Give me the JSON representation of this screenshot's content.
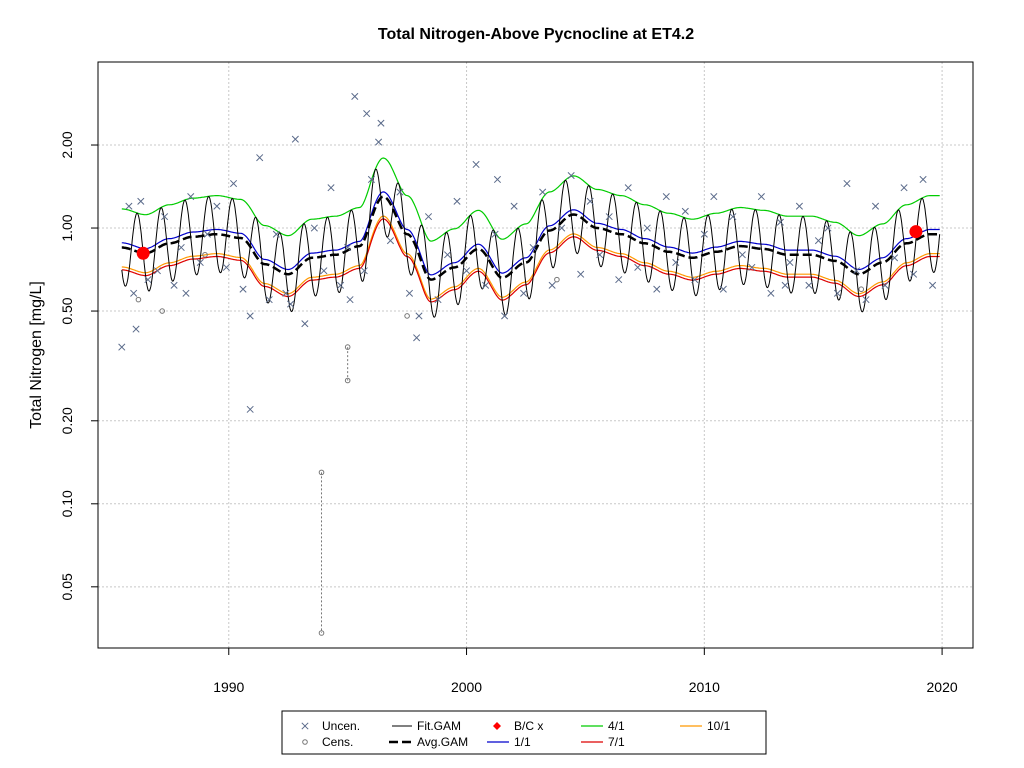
{
  "chart_data": {
    "type": "line",
    "title": "Total Nitrogen-Above Pycnocline at ET4.2",
    "xlabel": "",
    "ylabel": "Total Nitrogen [mg/L]",
    "y_scale": "log",
    "xlim": [
      1984.5,
      2021.3
    ],
    "ylim": [
      0.03,
      4.0
    ],
    "x_ticks": [
      1990,
      2000,
      2010,
      2020
    ],
    "x_tick_labels": [
      "1990",
      "2000",
      "2010",
      "2020"
    ],
    "y_ticks": [
      0.05,
      0.1,
      0.2,
      0.5,
      1.0,
      2.0
    ],
    "y_tick_labels": [
      "0.05",
      "0.10",
      "0.20",
      "0.50",
      "1.00",
      "2.00"
    ],
    "grid": true,
    "legend_position": "bottom",
    "legend": [
      {
        "key": "uncen",
        "label": "Uncen."
      },
      {
        "key": "cens",
        "label": "Cens."
      },
      {
        "key": "fit",
        "label": "Fit.GAM"
      },
      {
        "key": "avg",
        "label": "Avg.GAM"
      },
      {
        "key": "bc",
        "label": "B/C x"
      },
      {
        "key": "s11",
        "label": "1/1"
      },
      {
        "key": "s41",
        "label": "4/1"
      },
      {
        "key": "s71",
        "label": "7/1"
      },
      {
        "key": "s101",
        "label": "10/1"
      }
    ],
    "colors": {
      "uncen": "#5a6a8a",
      "cens": "#777777",
      "fit": "#000000",
      "avg": "#000000",
      "bc": "#ff0000",
      "s11": "#0000cc",
      "s41": "#00cc00",
      "s71": "#dd0000",
      "s101": "#ff9900"
    },
    "avg_gam": {
      "x": [
        1985.5,
        1986.5,
        1987.5,
        1988.5,
        1989.5,
        1990.5,
        1991.5,
        1992.5,
        1993.5,
        1994.5,
        1995.5,
        1996.5,
        1997.5,
        1998.5,
        1999.5,
        2000.5,
        2001.5,
        2002.5,
        2003.5,
        2004.5,
        2005.5,
        2006.5,
        2007.5,
        2008.5,
        2009.5,
        2010.5,
        2011.5,
        2012.5,
        2013.5,
        2014.5,
        2015.5,
        2016.5,
        2017.5,
        2018.5,
        2019.5
      ],
      "y": [
        0.85,
        0.81,
        0.88,
        0.93,
        0.95,
        0.92,
        0.74,
        0.68,
        0.78,
        0.8,
        0.86,
        1.3,
        0.95,
        0.65,
        0.72,
        0.84,
        0.66,
        0.75,
        0.98,
        1.12,
        1.0,
        0.95,
        0.88,
        0.82,
        0.78,
        0.82,
        0.86,
        0.84,
        0.8,
        0.8,
        0.76,
        0.68,
        0.75,
        0.88,
        0.95
      ]
    },
    "bc_points": {
      "x": [
        1986.4,
        2018.9
      ],
      "y": [
        0.81,
        0.97
      ]
    },
    "uncen_points": {
      "x": [
        1985.5,
        1985.8,
        1986.0,
        1986.3,
        1986.6,
        1987.0,
        1987.3,
        1987.7,
        1988.0,
        1988.4,
        1988.8,
        1989.1,
        1989.5,
        1989.9,
        1990.2,
        1990.6,
        1990.9,
        1991.3,
        1991.7,
        1992.0,
        1992.4,
        1992.8,
        1993.2,
        1993.6,
        1994.0,
        1994.3,
        1994.7,
        1995.0,
        1995.3,
        1995.7,
        1996.0,
        1996.4,
        1996.8,
        1997.2,
        1997.6,
        1998.0,
        1998.4,
        1998.8,
        1999.2,
        1999.6,
        2000.0,
        2000.4,
        2000.8,
        2001.2,
        2001.6,
        2002.0,
        2002.4,
        2002.8,
        2003.2,
        2003.6,
        2004.0,
        2004.4,
        2004.8,
        2005.2,
        2005.6,
        2006.0,
        2006.4,
        2006.8,
        2007.2,
        2007.6,
        2008.0,
        2008.4,
        2008.8,
        2009.2,
        2009.6,
        2010.0,
        2010.4,
        2010.8,
        2011.2,
        2011.6,
        2012.0,
        2012.4,
        2012.8,
        2013.2,
        2013.6,
        2014.0,
        2014.4,
        2014.8,
        2015.2,
        2015.6,
        2016.0,
        2016.4,
        2016.8,
        2017.2,
        2017.6,
        2018.0,
        2018.4,
        2018.8,
        2019.2,
        2019.6,
        1986.1,
        1990.9,
        1992.6,
        1995.1,
        1995.8,
        1996.3,
        2001.3,
        1988.2,
        1997.9,
        2013.4
      ],
      "y": [
        0.37,
        1.2,
        0.58,
        1.25,
        0.65,
        0.7,
        1.1,
        0.62,
        0.85,
        1.3,
        0.75,
        0.95,
        1.2,
        0.72,
        1.45,
        0.6,
        0.48,
        1.8,
        0.55,
        0.95,
        0.58,
        2.1,
        0.45,
        1.0,
        0.7,
        1.4,
        0.62,
        0.85,
        3.0,
        0.7,
        1.5,
        2.4,
        0.9,
        1.35,
        0.58,
        0.48,
        1.1,
        0.55,
        0.8,
        1.25,
        0.7,
        1.7,
        0.62,
        0.95,
        0.48,
        1.2,
        0.58,
        0.85,
        1.35,
        0.62,
        1.0,
        1.55,
        0.68,
        1.25,
        0.8,
        1.1,
        0.65,
        1.4,
        0.72,
        1.0,
        0.6,
        1.3,
        0.75,
        1.15,
        0.65,
        0.95,
        1.3,
        0.6,
        1.1,
        0.8,
        0.72,
        1.3,
        0.58,
        1.05,
        0.75,
        1.2,
        0.62,
        0.9,
        1.0,
        0.58,
        1.45,
        0.7,
        0.55,
        1.2,
        0.62,
        0.78,
        1.4,
        0.68,
        1.5,
        0.62,
        0.43,
        0.22,
        0.53,
        0.55,
        2.6,
        2.05,
        1.5,
        0.58,
        0.4,
        0.62
      ]
    },
    "cens_points": {
      "x": [
        1986.2,
        1987.2,
        1989.0,
        1993.9,
        1993.9,
        1995.0,
        1995.0,
        1997.5,
        2003.8,
        2016.6
      ],
      "y": [
        0.55,
        0.5,
        0.8,
        0.13,
        0.034,
        0.37,
        0.28,
        0.48,
        0.65,
        0.6
      ]
    }
  }
}
